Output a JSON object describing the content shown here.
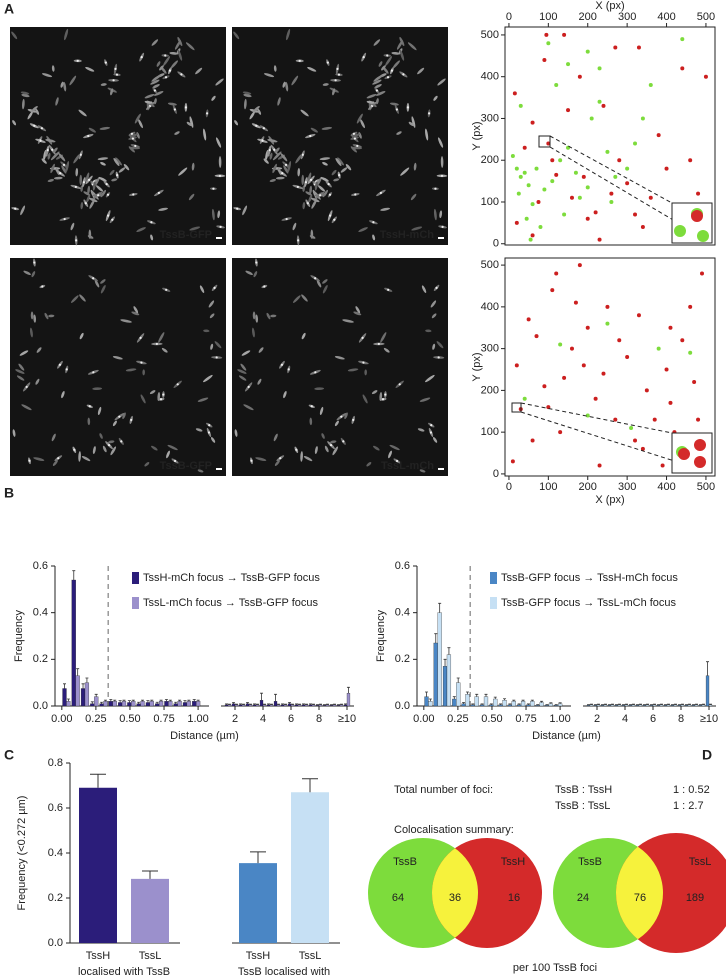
{
  "panel_labels": [
    "A",
    "B",
    "C",
    "D"
  ],
  "panel_a": {
    "images": [
      {
        "label": "TssB-GFP",
        "color": "#7ddc3c"
      },
      {
        "label": "TssH-mCh",
        "color": "#d42a2a"
      },
      {
        "label": "TssB-GFP",
        "color": "#7ddc3c"
      },
      {
        "label": "TssL-mCh",
        "color": "#d42a2a"
      }
    ]
  },
  "chart_data": [
    {
      "type": "scatter",
      "xlabel": "X (px)",
      "ylabel": "Y (px)",
      "x_axis_position": "top",
      "xlim": [
        -10,
        523
      ],
      "ylim": [
        -3,
        519
      ],
      "xticks": [
        0,
        100,
        200,
        300,
        400,
        500
      ],
      "yticks": [
        0,
        100,
        200,
        300,
        400,
        500
      ],
      "series": [
        {
          "color": "#7ddc3c",
          "x": [
            10,
            20,
            30,
            40,
            50,
            60,
            25,
            45,
            70,
            80,
            90,
            110,
            130,
            150,
            170,
            180,
            200,
            210,
            230,
            250,
            270,
            300,
            320,
            340,
            360,
            120,
            150,
            100,
            200,
            230,
            55,
            140,
            260,
            30,
            440,
            460
          ],
          "values": [
            210,
            180,
            160,
            170,
            140,
            95,
            120,
            60,
            180,
            40,
            130,
            150,
            200,
            230,
            170,
            110,
            135,
            300,
            340,
            220,
            160,
            180,
            240,
            300,
            380,
            380,
            430,
            480,
            460,
            420,
            10,
            70,
            100,
            330,
            490,
            80
          ]
        },
        {
          "color": "#cc1f1f",
          "x": [
            15,
            40,
            60,
            75,
            90,
            100,
            110,
            120,
            140,
            160,
            180,
            190,
            200,
            220,
            240,
            260,
            280,
            300,
            320,
            340,
            360,
            380,
            400,
            420,
            440,
            460,
            480,
            500,
            270,
            330,
            150,
            95,
            20,
            60,
            230
          ],
          "values": [
            360,
            230,
            290,
            100,
            440,
            240,
            200,
            165,
            500,
            110,
            400,
            160,
            60,
            75,
            330,
            120,
            200,
            145,
            70,
            40,
            110,
            260,
            180,
            40,
            420,
            200,
            120,
            400,
            470,
            470,
            320,
            500,
            50,
            20,
            10
          ]
        }
      ]
    },
    {
      "type": "scatter",
      "xlabel": "X (px)",
      "ylabel": "Y (px)",
      "x_axis_position": "bottom",
      "xlim": [
        -10,
        523
      ],
      "ylim": [
        -5,
        517
      ],
      "xticks": [
        0,
        100,
        200,
        300,
        400,
        500
      ],
      "yticks": [
        0,
        100,
        200,
        300,
        400,
        500
      ],
      "series": [
        {
          "color": "#7ddc3c",
          "x": [
            40,
            130,
            250,
            380,
            460,
            200,
            310
          ],
          "values": [
            180,
            310,
            360,
            300,
            290,
            140,
            110
          ]
        },
        {
          "color": "#cc1f1f",
          "x": [
            10,
            30,
            20,
            50,
            70,
            90,
            100,
            110,
            120,
            140,
            160,
            170,
            180,
            200,
            220,
            230,
            240,
            250,
            270,
            280,
            300,
            320,
            340,
            350,
            370,
            390,
            400,
            410,
            420,
            440,
            460,
            470,
            480,
            490,
            500,
            60,
            130,
            330,
            190,
            410
          ],
          "values": [
            30,
            155,
            260,
            370,
            330,
            210,
            160,
            440,
            480,
            230,
            300,
            410,
            500,
            350,
            180,
            20,
            240,
            400,
            130,
            320,
            280,
            80,
            60,
            200,
            130,
            20,
            250,
            170,
            100,
            320,
            400,
            220,
            130,
            480,
            60,
            80,
            100,
            380,
            260,
            350
          ]
        }
      ]
    },
    {
      "type": "bar",
      "ylabel": "Frequency",
      "xlabel": "Distance (µm)",
      "threshold": 0.34,
      "x": [
        0.034,
        0.102,
        0.17,
        0.238,
        0.306,
        0.374,
        0.442,
        0.51,
        0.578,
        0.646,
        0.714,
        0.782,
        0.85,
        0.918,
        0.986,
        1.5,
        2,
        2.5,
        3,
        3.5,
        4,
        4.5,
        5,
        5.5,
        6,
        6.5,
        7,
        7.5,
        8,
        8.5,
        9,
        9.5,
        10
      ],
      "xlim": [
        [
          -0.05,
          1.08
        ],
        [
          1,
          10.5
        ]
      ],
      "xticks": [
        {
          "value": 0,
          "label": "0.00"
        },
        {
          "value": 0.25,
          "label": "0.25"
        },
        {
          "value": 0.5,
          "label": "0.50"
        },
        {
          "value": 0.75,
          "label": "0.75"
        },
        {
          "value": 1,
          "label": "1.00"
        },
        2,
        4,
        6,
        8,
        {
          "value": 10,
          "label": "≥10"
        }
      ],
      "ylim": [
        0,
        0.6
      ],
      "yticks": [
        {
          "value": 0,
          "label": "0.0"
        },
        0.2,
        0.4,
        0.6
      ],
      "series": [
        {
          "name": "TssH-mCh focus → TssB-GFP focus",
          "color": "#2b1d7a",
          "values": [
            0.075,
            0.54,
            0.075,
            0.01,
            0.01,
            0.02,
            0.015,
            0.015,
            0.01,
            0.015,
            0.01,
            0.02,
            0.01,
            0.015,
            0.02,
            0.005,
            0.01,
            0.005,
            0.01,
            0.005,
            0.025,
            0.005,
            0.02,
            0.005,
            0.01,
            0.005,
            0.005,
            0.005,
            0.003,
            0.003,
            0.003,
            0.003,
            0.005
          ],
          "errors": [
            0.02,
            0.04,
            0.02,
            0.008,
            0.006,
            0.008,
            0.008,
            0.008,
            0.006,
            0.008,
            0.006,
            0.008,
            0.006,
            0.008,
            0.008,
            0.004,
            0.005,
            0.004,
            0.005,
            0.004,
            0.03,
            0.004,
            0.03,
            0.004,
            0.005,
            0.004,
            0.004,
            0.004,
            0.003,
            0.003,
            0.003,
            0.003,
            0.004
          ]
        },
        {
          "name": "TssL-mCh focus → TssB-GFP focus",
          "color": "#9b90cc",
          "values": [
            0.02,
            0.13,
            0.1,
            0.04,
            0.02,
            0.02,
            0.02,
            0.02,
            0.02,
            0.02,
            0.02,
            0.02,
            0.02,
            0.02,
            0.02,
            0.005,
            0.005,
            0.005,
            0.005,
            0.005,
            0.005,
            0.005,
            0.005,
            0.005,
            0.005,
            0.005,
            0.005,
            0.005,
            0.005,
            0.005,
            0.005,
            0.005,
            0.055
          ],
          "errors": [
            0.01,
            0.03,
            0.02,
            0.01,
            0.005,
            0.005,
            0.005,
            0.005,
            0.005,
            0.005,
            0.005,
            0.005,
            0.005,
            0.005,
            0.005,
            0.003,
            0.003,
            0.003,
            0.003,
            0.003,
            0.003,
            0.003,
            0.003,
            0.003,
            0.003,
            0.003,
            0.003,
            0.003,
            0.003,
            0.003,
            0.003,
            0.003,
            0.025
          ]
        }
      ]
    },
    {
      "type": "bar",
      "ylabel": "Frequency",
      "xlabel": "Distance (µm)",
      "threshold": 0.34,
      "x": [
        0.034,
        0.102,
        0.17,
        0.238,
        0.306,
        0.374,
        0.442,
        0.51,
        0.578,
        0.646,
        0.714,
        0.782,
        0.85,
        0.918,
        0.986,
        1.5,
        2,
        2.5,
        3,
        3.5,
        4,
        4.5,
        5,
        5.5,
        6,
        6.5,
        7,
        7.5,
        8,
        8.5,
        9,
        9.5,
        10
      ],
      "xlim": [
        [
          -0.05,
          1.08
        ],
        [
          1,
          10.5
        ]
      ],
      "xticks": [
        {
          "value": 0,
          "label": "0.00"
        },
        {
          "value": 0.25,
          "label": "0.25"
        },
        {
          "value": 0.5,
          "label": "0.50"
        },
        {
          "value": 0.75,
          "label": "0.75"
        },
        {
          "value": 1,
          "label": "1.00"
        },
        2,
        4,
        6,
        8,
        {
          "value": 10,
          "label": "≥10"
        }
      ],
      "ylim": [
        0,
        0.6
      ],
      "yticks": [
        {
          "value": 0,
          "label": "0.0"
        },
        0.2,
        0.4,
        0.6
      ],
      "series": [
        {
          "name": "TssB-GFP focus → TssH-mCh focus",
          "color": "#4a86c5",
          "values": [
            0.04,
            0.27,
            0.17,
            0.03,
            0.01,
            0.005,
            0.005,
            0.005,
            0.005,
            0.005,
            0.005,
            0.005,
            0.003,
            0.003,
            0.003,
            0.003,
            0.003,
            0.003,
            0.003,
            0.003,
            0.003,
            0.003,
            0.003,
            0.003,
            0.003,
            0.003,
            0.003,
            0.003,
            0.003,
            0.003,
            0.003,
            0.003,
            0.13
          ],
          "errors": [
            0.02,
            0.04,
            0.03,
            0.01,
            0.005,
            0.004,
            0.004,
            0.004,
            0.004,
            0.004,
            0.004,
            0.004,
            0.003,
            0.003,
            0.003,
            0.003,
            0.003,
            0.003,
            0.003,
            0.003,
            0.003,
            0.003,
            0.003,
            0.003,
            0.003,
            0.003,
            0.003,
            0.003,
            0.003,
            0.003,
            0.003,
            0.003,
            0.06
          ]
        },
        {
          "name": "TssB-GFP focus → TssL-mCh focus",
          "color": "#c6e0f4",
          "values": [
            0.02,
            0.4,
            0.22,
            0.1,
            0.05,
            0.04,
            0.04,
            0.03,
            0.025,
            0.02,
            0.02,
            0.02,
            0.015,
            0.01,
            0.01,
            0.005,
            0.005,
            0.005,
            0.005,
            0.005,
            0.005,
            0.005,
            0.005,
            0.005,
            0.005,
            0.005,
            0.005,
            0.005,
            0.005,
            0.005,
            0.005,
            0.005,
            0.005
          ],
          "errors": [
            0.01,
            0.04,
            0.03,
            0.02,
            0.01,
            0.01,
            0.01,
            0.008,
            0.006,
            0.005,
            0.005,
            0.005,
            0.005,
            0.004,
            0.004,
            0.003,
            0.003,
            0.003,
            0.003,
            0.003,
            0.003,
            0.003,
            0.003,
            0.003,
            0.003,
            0.003,
            0.003,
            0.003,
            0.003,
            0.003,
            0.003,
            0.003,
            0.003
          ]
        }
      ]
    },
    {
      "type": "bar",
      "ylabel": "Frequency (<0.272 µm)",
      "categories": [
        "TssH",
        "TssL",
        "TssH",
        "TssL"
      ],
      "groups": [
        "localised with TssB",
        "TssB localised with"
      ],
      "values": [
        0.69,
        0.285,
        0.355,
        0.67
      ],
      "errors": [
        0.06,
        0.035,
        0.05,
        0.06
      ],
      "colors": [
        "#2b1d7a",
        "#9b90cc",
        "#4a86c5",
        "#c6e0f4"
      ],
      "ylim": [
        0,
        0.8
      ],
      "yticks": [
        {
          "value": 0,
          "label": "0.0"
        },
        0.2,
        0.4,
        0.6,
        0.8
      ]
    }
  ],
  "panel_d": {
    "total_label": "Total number of foci:",
    "ratios": [
      {
        "pair": "TssB : TssH",
        "ratio": "1 : 0.52"
      },
      {
        "pair": "TssB : TssL",
        "ratio": "1 : 2.7"
      }
    ],
    "summary_label": "Colocalisation summary:",
    "venns": [
      {
        "left": "TssB",
        "right": "TssH",
        "left_only": 64,
        "both": 36,
        "right_only": 16
      },
      {
        "left": "TssB",
        "right": "TssL",
        "left_only": 24,
        "both": 76,
        "right_only": 189
      }
    ],
    "footer": "per 100 TssB foci"
  }
}
